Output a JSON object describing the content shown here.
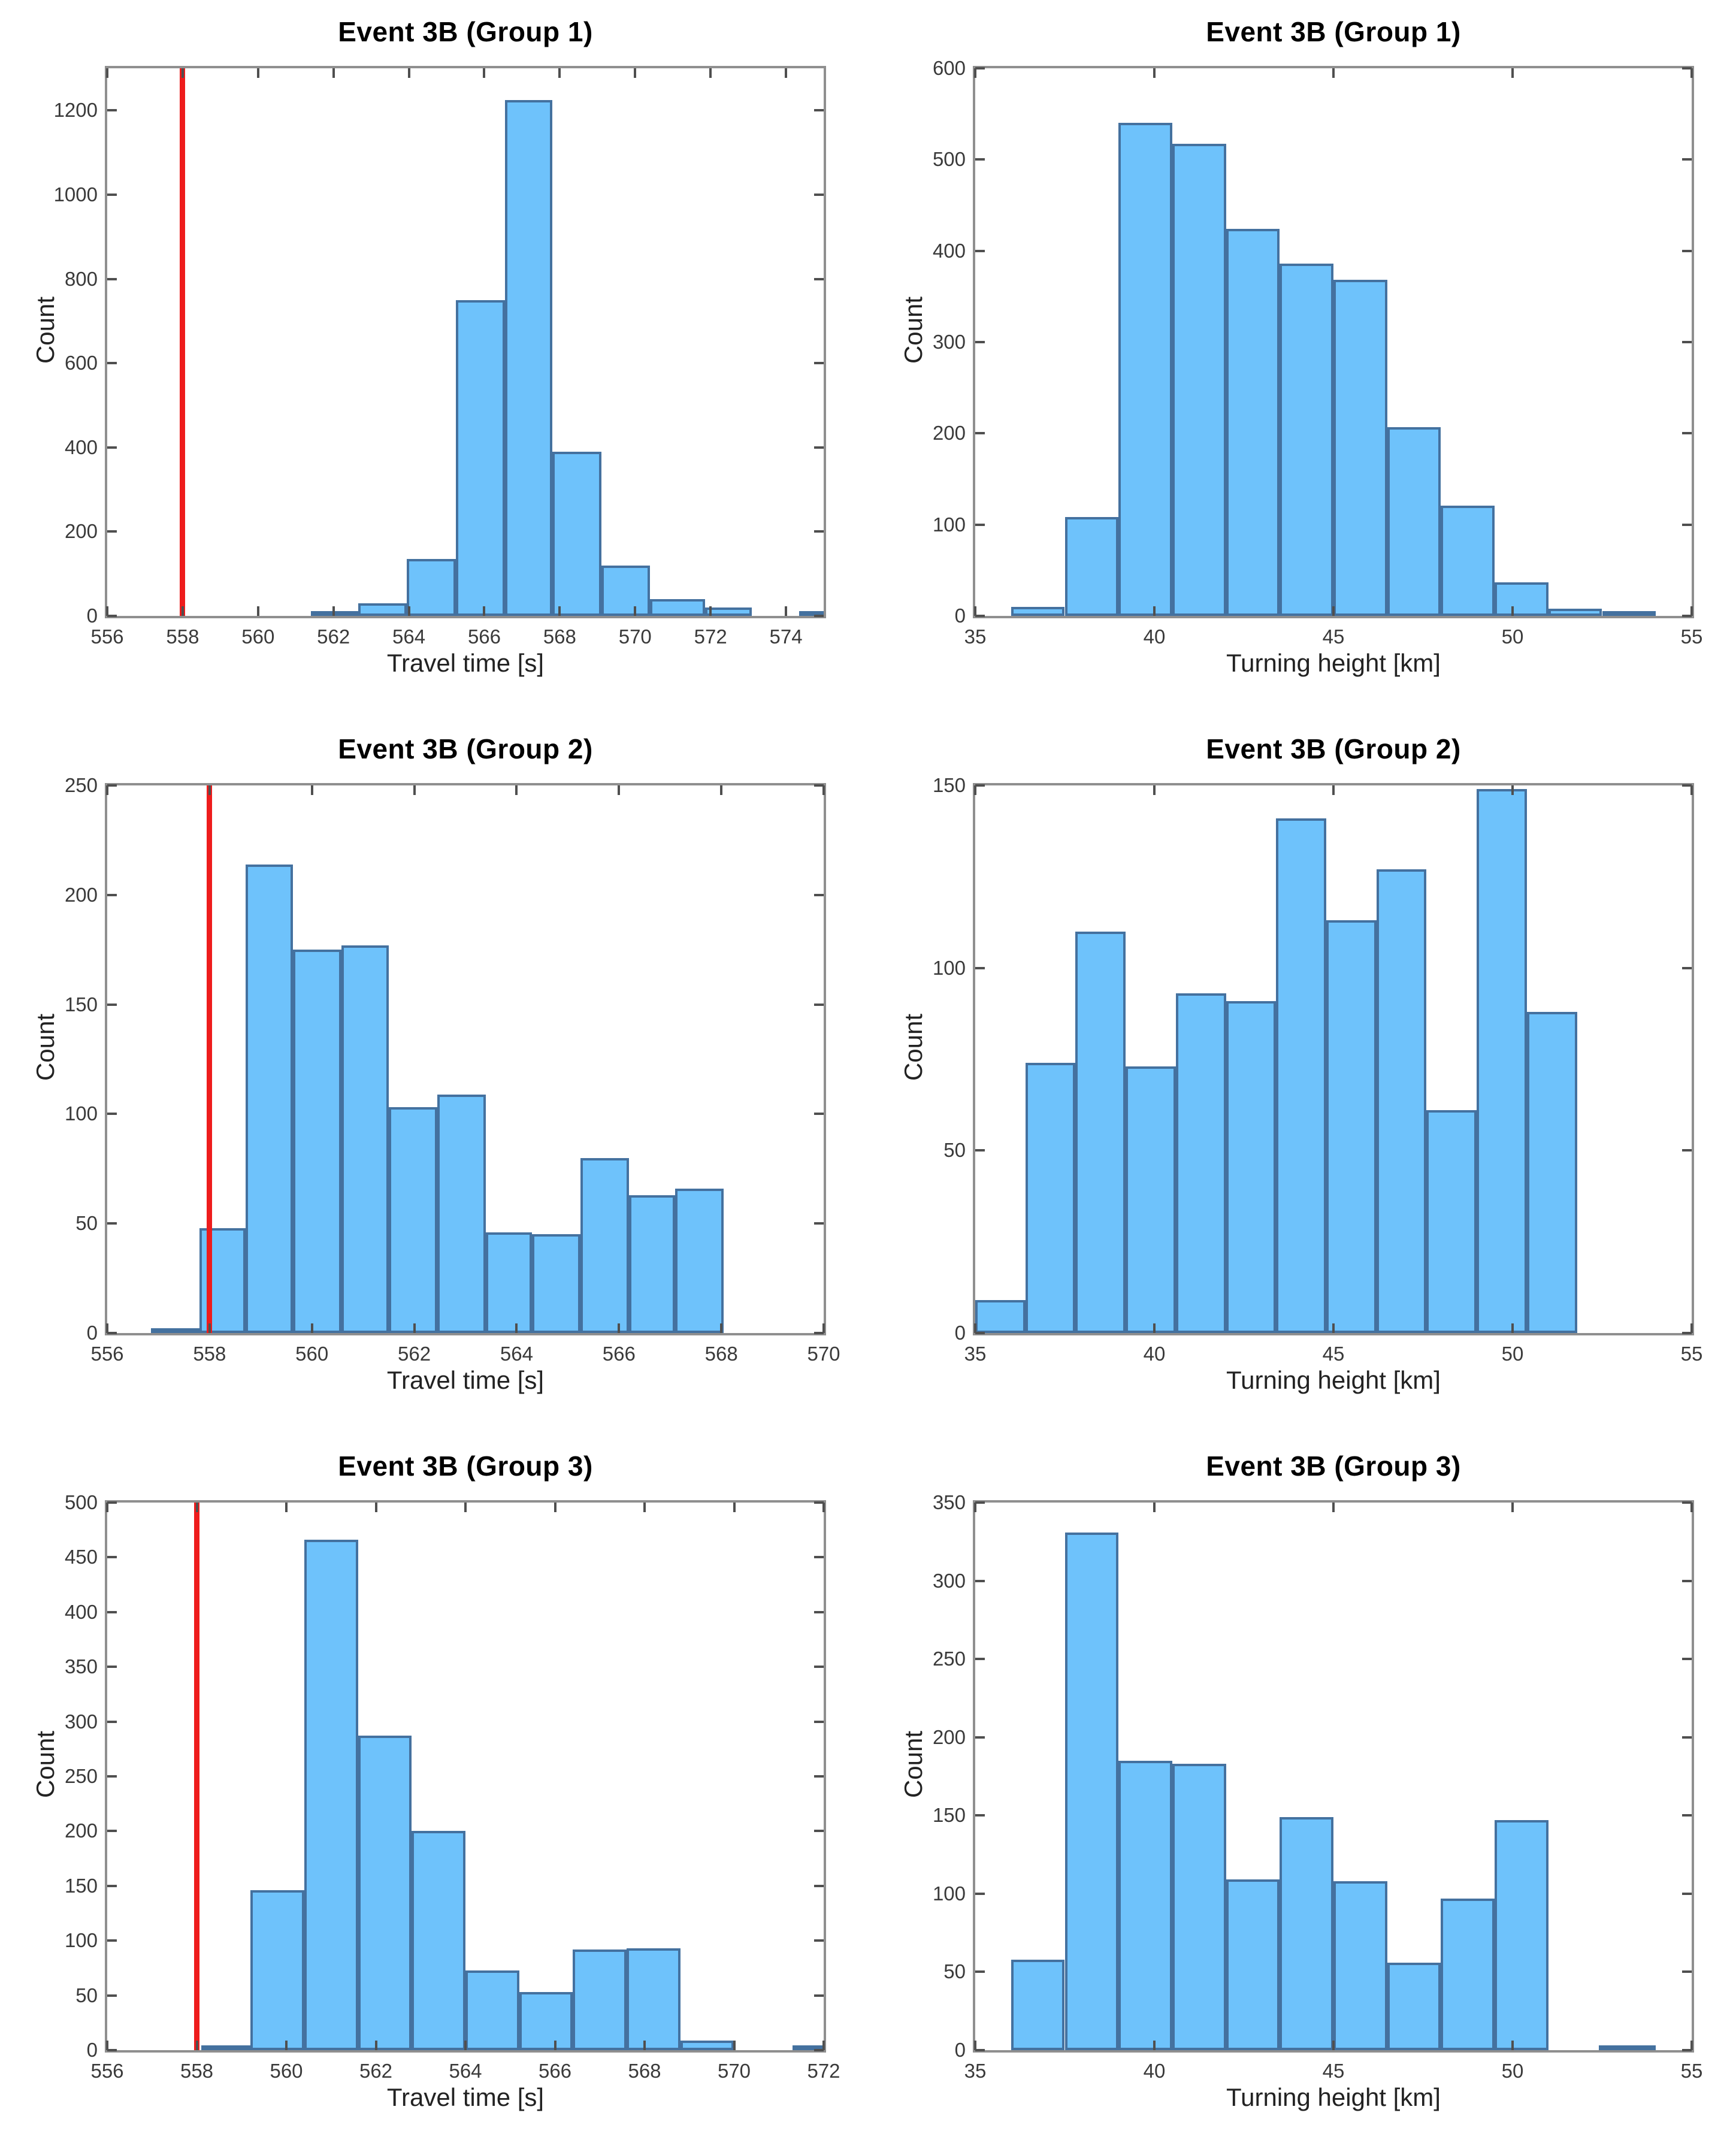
{
  "figure": {
    "description": "Six histograms in a 3x2 grid: travel time (left column, with red reference line) and turning height (right column) for Event 3B Groups 1-3",
    "background": "#ffffff"
  },
  "colors": {
    "bar_fill": "#6ec2fb",
    "bar_edge": "#44719f",
    "red_line": "#ee1c1c",
    "axis_box": "#8f8f8f",
    "tick_mark": "#4f4f4f",
    "tick_text": "#3a3a3a",
    "label_text": "#222222",
    "title_text": "#000000"
  },
  "chart_data": [
    {
      "type": "bar",
      "subtype": "histogram",
      "title": "Event 3B (Group 1)",
      "xlabel": "Travel time [s]",
      "ylabel": "Count",
      "xlim": [
        556,
        575
      ],
      "ylim": [
        0,
        1300
      ],
      "xticks": [
        556,
        558,
        560,
        562,
        564,
        566,
        568,
        570,
        572,
        574
      ],
      "yticks": [
        0,
        200,
        400,
        600,
        800,
        1000,
        1200
      ],
      "grid": false,
      "red_line": {
        "x": 558
      },
      "bars": [
        {
          "from": 561.4,
          "to": 562.65,
          "count": 5
        },
        {
          "from": 562.65,
          "to": 563.95,
          "count": 30
        },
        {
          "from": 563.95,
          "to": 565.25,
          "count": 135
        },
        {
          "from": 565.25,
          "to": 566.55,
          "count": 750
        },
        {
          "from": 566.55,
          "to": 567.8,
          "count": 1225
        },
        {
          "from": 567.8,
          "to": 569.1,
          "count": 390
        },
        {
          "from": 569.1,
          "to": 570.4,
          "count": 120
        },
        {
          "from": 570.4,
          "to": 571.85,
          "count": 40
        },
        {
          "from": 571.85,
          "to": 573.1,
          "count": 20
        },
        {
          "from": 574.35,
          "to": 575.0,
          "count": 2
        }
      ]
    },
    {
      "type": "bar",
      "subtype": "histogram",
      "title": "Event 3B (Group 1)",
      "xlabel": "Turning height [km]",
      "ylabel": "Count",
      "xlim": [
        35,
        55
      ],
      "ylim": [
        0,
        600
      ],
      "xticks": [
        35,
        40,
        45,
        50,
        55
      ],
      "yticks": [
        0,
        100,
        200,
        300,
        400,
        500,
        600
      ],
      "grid": false,
      "red_line": null,
      "bars": [
        {
          "from": 36.0,
          "to": 37.5,
          "count": 10
        },
        {
          "from": 37.5,
          "to": 39.0,
          "count": 108
        },
        {
          "from": 39.0,
          "to": 40.5,
          "count": 540
        },
        {
          "from": 40.5,
          "to": 42.0,
          "count": 517
        },
        {
          "from": 42.0,
          "to": 43.5,
          "count": 424
        },
        {
          "from": 43.5,
          "to": 45.0,
          "count": 386
        },
        {
          "from": 45.0,
          "to": 46.5,
          "count": 368
        },
        {
          "from": 46.5,
          "to": 48.0,
          "count": 207
        },
        {
          "from": 48.0,
          "to": 49.5,
          "count": 121
        },
        {
          "from": 49.5,
          "to": 51.0,
          "count": 37
        },
        {
          "from": 51.0,
          "to": 52.5,
          "count": 8
        },
        {
          "from": 52.5,
          "to": 54.0,
          "count": 2
        }
      ]
    },
    {
      "type": "bar",
      "subtype": "histogram",
      "title": "Event 3B (Group 2)",
      "xlabel": "Travel time [s]",
      "ylabel": "Count",
      "xlim": [
        556,
        570
      ],
      "ylim": [
        0,
        250
      ],
      "xticks": [
        556,
        558,
        560,
        562,
        564,
        566,
        568,
        570
      ],
      "yticks": [
        0,
        50,
        100,
        150,
        200,
        250
      ],
      "grid": false,
      "red_line": {
        "x": 558
      },
      "bars": [
        {
          "from": 556.85,
          "to": 557.8,
          "count": 1
        },
        {
          "from": 557.8,
          "to": 558.7,
          "count": 48
        },
        {
          "from": 558.7,
          "to": 559.63,
          "count": 214
        },
        {
          "from": 559.63,
          "to": 560.58,
          "count": 175
        },
        {
          "from": 560.58,
          "to": 561.5,
          "count": 177
        },
        {
          "from": 561.5,
          "to": 562.45,
          "count": 103
        },
        {
          "from": 562.45,
          "to": 563.4,
          "count": 109
        },
        {
          "from": 563.4,
          "to": 564.3,
          "count": 46
        },
        {
          "from": 564.3,
          "to": 565.25,
          "count": 45
        },
        {
          "from": 565.25,
          "to": 566.2,
          "count": 80
        },
        {
          "from": 566.2,
          "to": 567.1,
          "count": 63
        },
        {
          "from": 567.1,
          "to": 568.05,
          "count": 66
        }
      ]
    },
    {
      "type": "bar",
      "subtype": "histogram",
      "title": "Event 3B (Group 2)",
      "xlabel": "Turning height [km]",
      "ylabel": "Count",
      "xlim": [
        35,
        55
      ],
      "ylim": [
        0,
        150
      ],
      "xticks": [
        35,
        40,
        45,
        50,
        55
      ],
      "yticks": [
        0,
        50,
        100,
        150
      ],
      "grid": false,
      "red_line": null,
      "bars": [
        {
          "from": 35.0,
          "to": 36.4,
          "count": 9
        },
        {
          "from": 36.4,
          "to": 37.8,
          "count": 74
        },
        {
          "from": 37.8,
          "to": 39.2,
          "count": 110
        },
        {
          "from": 39.2,
          "to": 40.6,
          "count": 73
        },
        {
          "from": 40.6,
          "to": 42.0,
          "count": 93
        },
        {
          "from": 42.0,
          "to": 43.4,
          "count": 91
        },
        {
          "from": 43.4,
          "to": 44.8,
          "count": 141
        },
        {
          "from": 44.8,
          "to": 46.2,
          "count": 113
        },
        {
          "from": 46.2,
          "to": 47.6,
          "count": 127
        },
        {
          "from": 47.6,
          "to": 49.0,
          "count": 61
        },
        {
          "from": 49.0,
          "to": 50.4,
          "count": 149
        },
        {
          "from": 50.4,
          "to": 51.8,
          "count": 88
        }
      ]
    },
    {
      "type": "bar",
      "subtype": "histogram",
      "title": "Event 3B (Group 3)",
      "xlabel": "Travel time [s]",
      "ylabel": "Count",
      "xlim": [
        556,
        572
      ],
      "ylim": [
        0,
        500
      ],
      "xticks": [
        556,
        558,
        560,
        562,
        564,
        566,
        568,
        570,
        572
      ],
      "yticks": [
        0,
        50,
        100,
        150,
        200,
        250,
        300,
        350,
        400,
        450,
        500
      ],
      "grid": false,
      "red_line": {
        "x": 558
      },
      "bars": [
        {
          "from": 558.1,
          "to": 559.2,
          "count": 4
        },
        {
          "from": 559.2,
          "to": 560.4,
          "count": 146
        },
        {
          "from": 560.4,
          "to": 561.6,
          "count": 466
        },
        {
          "from": 561.6,
          "to": 562.8,
          "count": 287
        },
        {
          "from": 562.8,
          "to": 564.0,
          "count": 200
        },
        {
          "from": 564.0,
          "to": 565.2,
          "count": 73
        },
        {
          "from": 565.2,
          "to": 566.4,
          "count": 53
        },
        {
          "from": 566.4,
          "to": 567.6,
          "count": 92
        },
        {
          "from": 567.6,
          "to": 568.8,
          "count": 93
        },
        {
          "from": 568.8,
          "to": 570.0,
          "count": 9
        },
        {
          "from": 571.3,
          "to": 572.0,
          "count": 2
        }
      ]
    },
    {
      "type": "bar",
      "subtype": "histogram",
      "title": "Event 3B (Group 3)",
      "xlabel": "Turning height [km]",
      "ylabel": "Count",
      "xlim": [
        35,
        55
      ],
      "ylim": [
        0,
        350
      ],
      "xticks": [
        35,
        40,
        45,
        50,
        55
      ],
      "yticks": [
        0,
        50,
        100,
        150,
        200,
        250,
        300,
        350
      ],
      "grid": false,
      "red_line": null,
      "bars": [
        {
          "from": 36.0,
          "to": 37.5,
          "count": 58
        },
        {
          "from": 37.5,
          "to": 39.0,
          "count": 331
        },
        {
          "from": 39.0,
          "to": 40.5,
          "count": 185
        },
        {
          "from": 40.5,
          "to": 42.0,
          "count": 183
        },
        {
          "from": 42.0,
          "to": 43.5,
          "count": 109
        },
        {
          "from": 43.5,
          "to": 45.0,
          "count": 149
        },
        {
          "from": 45.0,
          "to": 46.5,
          "count": 108
        },
        {
          "from": 46.5,
          "to": 48.0,
          "count": 56
        },
        {
          "from": 48.0,
          "to": 49.5,
          "count": 97
        },
        {
          "from": 49.5,
          "to": 51.0,
          "count": 147
        },
        {
          "from": 52.4,
          "to": 54.0,
          "count": 3
        }
      ]
    }
  ]
}
